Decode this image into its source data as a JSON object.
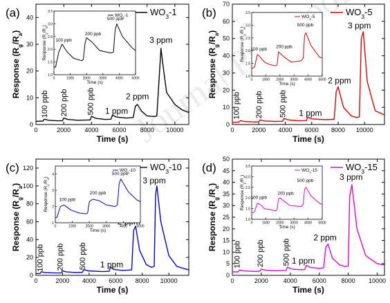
{
  "watermark": "Journal Pre-proof",
  "chart_data": [
    {
      "panel_label": "(a)",
      "type": "line",
      "color": "#000000",
      "legend": [
        "WO",
        "3",
        "-1"
      ],
      "xlabel": "Time (s)",
      "ylabel": [
        "Response (R",
        "g",
        "/R",
        "a",
        ")"
      ],
      "xlim": [
        0,
        11000
      ],
      "ylim": [
        0,
        45
      ],
      "xticks": [
        "0",
        "2000",
        "4000",
        "6000",
        "8000",
        "10000"
      ],
      "yticks": [
        "0",
        "10",
        "20",
        "30",
        "40"
      ],
      "x": [
        0,
        500,
        600,
        900,
        1500,
        1900,
        2000,
        2300,
        3000,
        3900,
        4000,
        4300,
        5000,
        5400,
        5500,
        5800,
        6500,
        7000,
        7150,
        7300,
        7600,
        8000,
        8500,
        8700,
        8900,
        9000,
        9150,
        9400,
        10000,
        10500,
        11000
      ],
      "y": [
        1.2,
        1.3,
        2.0,
        1.6,
        1.4,
        1.4,
        2.4,
        1.9,
        1.6,
        1.7,
        3.1,
        2.3,
        1.9,
        2.0,
        3.5,
        2.8,
        2.4,
        2.6,
        6.8,
        7.5,
        5.0,
        3.2,
        3.0,
        3.2,
        20.0,
        28.5,
        22.0,
        12.0,
        7.5,
        5.5,
        4.5
      ],
      "annotations": [
        {
          "text": "100 ppb",
          "x": 800,
          "y": 2.5,
          "rotate": true
        },
        {
          "text": "200 ppb",
          "x": 2200,
          "y": 3.0,
          "rotate": true
        },
        {
          "text": "500 ppb",
          "x": 4100,
          "y": 3.5,
          "rotate": true
        },
        {
          "text": "1 ppm",
          "x": 5800,
          "y": 4.0,
          "rotate": false
        },
        {
          "text": "2 ppm",
          "x": 7300,
          "y": 9.5,
          "rotate": false
        },
        {
          "text": "3 ppm",
          "x": 9000,
          "y": 30.5,
          "rotate": false
        }
      ],
      "inset": {
        "legend": [
          "WO",
          "3",
          "-1"
        ],
        "xlabel": "Time (s)",
        "ylabel": [
          "Response (R",
          "g",
          "/R",
          "a",
          ")"
        ],
        "xlim": [
          0,
          5000
        ],
        "ylim": [
          1.0,
          3.5
        ],
        "xticks": [
          "0",
          "1000",
          "2000",
          "3000",
          "4000",
          "5000"
        ],
        "yticks": [
          "1.0",
          "1.5",
          "2.0",
          "2.5",
          "3.0",
          "3.5"
        ],
        "x": [
          0,
          100,
          300,
          500,
          800,
          1200,
          1700,
          1800,
          1900,
          2000,
          2300,
          2800,
          3500,
          3650,
          3750,
          3850,
          4200,
          4800,
          5000
        ],
        "y": [
          1.3,
          1.3,
          1.9,
          2.2,
          1.9,
          1.65,
          1.55,
          1.6,
          2.2,
          2.45,
          2.3,
          1.95,
          1.85,
          1.9,
          2.75,
          3.0,
          2.5,
          2.05,
          1.95
        ],
        "annotations": [
          {
            "text": "100 ppb",
            "x": 600,
            "y": 2.3
          },
          {
            "text": "200 ppb",
            "x": 2400,
            "y": 2.55
          },
          {
            "text": "500 ppb",
            "x": 3750,
            "y": 3.15
          }
        ]
      }
    },
    {
      "panel_label": "(b)",
      "type": "line",
      "color": "#dd0000",
      "legend": [
        "WO",
        "3",
        "-5"
      ],
      "xlabel": "Time (s)",
      "ylabel": [
        "Response (R",
        "g",
        "/R",
        "a",
        ")"
      ],
      "xlim": [
        0,
        11500
      ],
      "ylim": [
        0,
        70
      ],
      "xticks": [
        "0",
        "2000",
        "4000",
        "6000",
        "8000",
        "10000"
      ],
      "yticks": [
        "0",
        "10",
        "20",
        "30",
        "40",
        "50",
        "60",
        "70"
      ],
      "x": [
        0,
        500,
        600,
        900,
        1600,
        2000,
        2100,
        2400,
        3200,
        3800,
        3900,
        4300,
        5000,
        5600,
        5700,
        6000,
        7000,
        7700,
        7850,
        8000,
        8400,
        9000,
        9400,
        9600,
        9750,
        9900,
        10200,
        10800,
        11500
      ],
      "y": [
        1.3,
        1.4,
        2.3,
        1.8,
        1.5,
        1.6,
        2.7,
        2.1,
        1.8,
        1.9,
        3.5,
        2.6,
        2.2,
        2.3,
        4.3,
        3.3,
        2.8,
        3.0,
        19.0,
        22.0,
        10.0,
        5.0,
        4.0,
        4.5,
        50.0,
        54.0,
        25.0,
        8.0,
        5.5
      ],
      "annotations": [
        {
          "text": "100 ppb",
          "x": 500,
          "y": 3.0,
          "rotate": true
        },
        {
          "text": "200 ppb",
          "x": 2200,
          "y": 3.5,
          "rotate": true
        },
        {
          "text": "500 ppb",
          "x": 4000,
          "y": 4.0,
          "rotate": true
        },
        {
          "text": "1 ppm",
          "x": 5900,
          "y": 5.0,
          "rotate": false
        },
        {
          "text": "2 ppm",
          "x": 8100,
          "y": 24.0,
          "rotate": false
        },
        {
          "text": "3 ppm",
          "x": 9600,
          "y": 56.0,
          "rotate": false
        }
      ],
      "inset": {
        "legend": [
          "WO",
          "3",
          "-5"
        ],
        "xlabel": "Time (s)",
        "ylabel": [
          "Response (R",
          "g",
          "/R",
          "a",
          ")"
        ],
        "xlim": [
          0,
          5000
        ],
        "ylim": [
          1.0,
          3.5
        ],
        "xticks": [
          "0",
          "1000",
          "2000",
          "3000",
          "4000",
          "5000"
        ],
        "yticks": [
          "1.0",
          "1.5",
          "2.0",
          "2.5",
          "3.0",
          "3.5"
        ],
        "x": [
          0,
          200,
          400,
          600,
          900,
          1300,
          1700,
          1800,
          1900,
          2000,
          2300,
          2800,
          3500,
          3650,
          3750,
          3850,
          4200,
          4800,
          5000
        ],
        "y": [
          1.3,
          1.35,
          1.85,
          1.75,
          1.55,
          1.45,
          1.4,
          1.45,
          1.95,
          1.9,
          1.75,
          1.55,
          1.6,
          1.7,
          2.6,
          2.7,
          2.2,
          1.75,
          1.7
        ],
        "annotations": [
          {
            "text": "100 ppb",
            "x": 500,
            "y": 2.0
          },
          {
            "text": "200 ppb",
            "x": 2300,
            "y": 2.1
          },
          {
            "text": "500 ppb",
            "x": 3800,
            "y": 2.95
          }
        ]
      }
    },
    {
      "panel_label": "(c)",
      "type": "line",
      "color": "#0000cc",
      "legend": [
        "WO",
        "3",
        "-10"
      ],
      "xlabel": "Time (s)",
      "ylabel": [
        "Response (R",
        "g",
        "/R",
        "a",
        ")"
      ],
      "xlim": [
        0,
        11500
      ],
      "ylim": [
        0,
        130
      ],
      "xticks": [
        "0",
        "2000",
        "4000",
        "6000",
        "8000",
        "10000"
      ],
      "yticks": [
        "0",
        "20",
        "40",
        "60",
        "80",
        "100",
        "120"
      ],
      "x": [
        0,
        300,
        400,
        700,
        1500,
        1900,
        2000,
        2300,
        3000,
        3500,
        3600,
        3900,
        5000,
        5500,
        5600,
        5900,
        6500,
        7200,
        7350,
        7500,
        7800,
        8300,
        8700,
        8900,
        9000,
        9100,
        9400,
        10000,
        10600,
        11500
      ],
      "y": [
        2.0,
        2.1,
        4.0,
        3.0,
        2.6,
        2.7,
        5.0,
        3.8,
        3.2,
        3.4,
        6.5,
        5.0,
        4.2,
        4.5,
        9.0,
        6.5,
        5.5,
        6.0,
        50.0,
        55.0,
        28.0,
        12.0,
        9.0,
        10.0,
        90.0,
        100.0,
        60.0,
        22.0,
        10.0,
        6.0
      ],
      "annotations": [
        {
          "text": "100 ppb",
          "x": 500,
          "y": 4.0,
          "rotate": true
        },
        {
          "text": "200 ppb",
          "x": 2000,
          "y": 5.0,
          "rotate": true
        },
        {
          "text": "500 ppb",
          "x": 3700,
          "y": 6.0,
          "rotate": true
        },
        {
          "text": "1 ppm",
          "x": 5700,
          "y": 9.0,
          "rotate": false
        },
        {
          "text": "2 ppm",
          "x": 7000,
          "y": 57.0,
          "rotate": false
        },
        {
          "text": "3 ppm",
          "x": 8900,
          "y": 103.0,
          "rotate": false
        }
      ],
      "inset": {
        "legend": [
          "WO",
          "3",
          "-10"
        ],
        "xlabel": "Time (s)",
        "ylabel": [
          "Response (R",
          "g",
          "/R",
          "a",
          ")"
        ],
        "xlim": [
          0,
          5000
        ],
        "ylim": [
          1.0,
          4.5
        ],
        "xticks": [
          "0",
          "1000",
          "2000",
          "3000",
          "4000",
          "5000"
        ],
        "yticks": [
          "1",
          "2",
          "3",
          "4"
        ],
        "x": [
          0,
          100,
          300,
          500,
          900,
          1400,
          1800,
          1900,
          2000,
          2200,
          2600,
          3000,
          3500,
          3650,
          3750,
          3850,
          4300,
          4800,
          5000
        ],
        "y": [
          1.3,
          1.35,
          2.0,
          2.1,
          1.8,
          1.6,
          1.55,
          1.6,
          2.3,
          2.45,
          2.35,
          2.1,
          2.0,
          2.1,
          3.4,
          3.7,
          2.9,
          2.4,
          2.3
        ],
        "annotations": [
          {
            "text": "100 ppb",
            "x": 700,
            "y": 2.35
          },
          {
            "text": "200 ppb",
            "x": 2500,
            "y": 2.75
          },
          {
            "text": "500 ppb",
            "x": 3800,
            "y": 3.95
          }
        ]
      }
    },
    {
      "panel_label": "(d)",
      "type": "line",
      "color": "#e000e0",
      "legend": [
        "WO",
        "3",
        "-15"
      ],
      "xlabel": "Time (s)",
      "ylabel": [
        "Response (R",
        "g",
        "/R",
        "a",
        ")"
      ],
      "xlim": [
        0,
        10500
      ],
      "ylim": [
        0,
        50
      ],
      "xticks": [
        "0",
        "2000",
        "4000",
        "6000",
        "8000",
        "10000"
      ],
      "yticks": [
        "0",
        "5",
        "10",
        "15",
        "20",
        "25",
        "30",
        "35",
        "40",
        "45",
        "50"
      ],
      "x": [
        0,
        400,
        500,
        800,
        1500,
        1900,
        2000,
        2300,
        3000,
        3700,
        3800,
        4100,
        4800,
        5000,
        5100,
        5400,
        6000,
        6300,
        6450,
        6600,
        6900,
        7400,
        7800,
        8000,
        8100,
        8250,
        8600,
        9200,
        10000,
        10500
      ],
      "y": [
        1.5,
        1.5,
        2.3,
        1.9,
        1.7,
        1.8,
        2.7,
        2.2,
        2.0,
        2.1,
        3.5,
        2.7,
        2.4,
        2.5,
        4.3,
        3.4,
        3.0,
        3.2,
        12.0,
        13.5,
        7.5,
        4.5,
        3.8,
        4.0,
        34.0,
        39.0,
        20.0,
        8.5,
        5.0,
        4.5
      ],
      "annotations": [
        {
          "text": "100 ppb",
          "x": 500,
          "y": 3.0,
          "rotate": true
        },
        {
          "text": "200 ppb",
          "x": 2100,
          "y": 3.5,
          "rotate": true
        },
        {
          "text": "500 ppb",
          "x": 3900,
          "y": 4.0,
          "rotate": true
        },
        {
          "text": "1 ppm",
          "x": 4900,
          "y": 5.0,
          "rotate": false
        },
        {
          "text": "2 ppm",
          "x": 6400,
          "y": 15.0,
          "rotate": false
        },
        {
          "text": "3 ppm",
          "x": 8200,
          "y": 41.0,
          "rotate": false
        }
      ],
      "inset": {
        "legend": [
          "WO",
          "3",
          "-15"
        ],
        "xlabel": "Time (s)",
        "ylabel": [
          "Response (R",
          "g",
          "/R",
          "a",
          ")"
        ],
        "xlim": [
          0,
          5000
        ],
        "ylim": [
          1.0,
          3.5
        ],
        "xticks": [
          "0",
          "1000",
          "2000",
          "3000",
          "4000",
          "5000"
        ],
        "yticks": [
          "1.0",
          "1.5",
          "2.0",
          "2.5",
          "3.0",
          "3.5"
        ],
        "x": [
          0,
          200,
          400,
          600,
          900,
          1300,
          1700,
          1800,
          1900,
          2000,
          2300,
          2700,
          3500,
          3650,
          3750,
          3850,
          4200,
          4800,
          5000
        ],
        "y": [
          1.3,
          1.35,
          1.75,
          1.7,
          1.5,
          1.45,
          1.4,
          1.45,
          1.95,
          2.0,
          1.85,
          1.65,
          1.6,
          1.7,
          2.4,
          2.5,
          2.1,
          1.75,
          1.7
        ],
        "annotations": [
          {
            "text": "100 ppb",
            "x": 500,
            "y": 1.95
          },
          {
            "text": "200 ppb",
            "x": 2400,
            "y": 2.15
          },
          {
            "text": "500 ppb",
            "x": 3800,
            "y": 2.75
          }
        ]
      }
    }
  ]
}
